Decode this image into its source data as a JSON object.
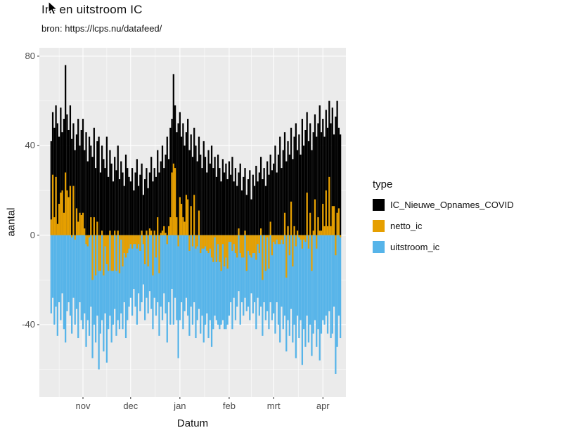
{
  "chart_data": {
    "type": "bar",
    "title": "In- en uitstroom IC",
    "subtitle": "bron: https://lcps.nu/datafeed/",
    "xlabel": "Datum",
    "ylabel": "aantal",
    "x_tick_labels": [
      "nov",
      "dec",
      "jan",
      "feb",
      "mrt",
      "apr"
    ],
    "x_tick_day_index": [
      20,
      50,
      81,
      112,
      140,
      171
    ],
    "y_ticks": [
      80,
      40,
      0,
      -40
    ],
    "ylim": [
      -72,
      84
    ],
    "grid": true,
    "panel_background": "#EBEBEB",
    "gridline_color": "#FFFFFF",
    "legend": {
      "title": "type",
      "position": "right",
      "entries": [
        {
          "label": "IC_Nieuwe_Opnames_COVID",
          "color": "#000000"
        },
        {
          "label": "netto_ic",
          "color": "#E69F00"
        },
        {
          "label": "uitstroom_ic",
          "color": "#56B4E9"
        }
      ]
    },
    "series": [
      {
        "name": "IC_Nieuwe_Opnames_COVID",
        "color": "#000000",
        "values": [
          42,
          55,
          48,
          58,
          50,
          44,
          57,
          46,
          52,
          76,
          54,
          47,
          58,
          43,
          50,
          38,
          45,
          52,
          40,
          47,
          52,
          38,
          46,
          33,
          44,
          40,
          35,
          48,
          30,
          42,
          44,
          28,
          40,
          34,
          30,
          44,
          26,
          38,
          32,
          24,
          35,
          29,
          40,
          25,
          33,
          28,
          22,
          36,
          30,
          26,
          24,
          30,
          20,
          28,
          34,
          22,
          27,
          32,
          18,
          25,
          30,
          21,
          28,
          35,
          24,
          30,
          26,
          38,
          28,
          33,
          40,
          30,
          36,
          44,
          34,
          48,
          52,
          72,
          58,
          46,
          50,
          55,
          44,
          50,
          40,
          46,
          52,
          38,
          45,
          35,
          48,
          40,
          33,
          44,
          36,
          30,
          42,
          35,
          28,
          38,
          32,
          40,
          30,
          35,
          26,
          36,
          30,
          24,
          34,
          28,
          32,
          25,
          33,
          27,
          35,
          24,
          30,
          22,
          28,
          32,
          20,
          26,
          30,
          18,
          25,
          29,
          16,
          27,
          22,
          31,
          24,
          28,
          35,
          25,
          30,
          22,
          33,
          27,
          36,
          29,
          32,
          40,
          28,
          36,
          44,
          30,
          38,
          46,
          33,
          42,
          36,
          48,
          34,
          44,
          50,
          38,
          45,
          36,
          52,
          40,
          47,
          55,
          42,
          50,
          38,
          46,
          54,
          44,
          50,
          58,
          46,
          52,
          44,
          56,
          48,
          60,
          50,
          57,
          45,
          53,
          60,
          48,
          45
        ]
      },
      {
        "name": "netto_ic",
        "color": "#E69F00",
        "values": [
          7,
          27,
          8,
          26,
          5,
          14,
          19,
          20,
          10,
          28,
          20,
          17,
          22,
          -1,
          22,
          -2,
          12,
          6,
          10,
          9,
          10,
          3,
          -4,
          -5,
          -1,
          8,
          -20,
          8,
          -18,
          6,
          -16,
          -16,
          2,
          -18,
          -5,
          -13,
          -16,
          2,
          -16,
          -16,
          2,
          -16,
          2,
          -17,
          -2,
          -14,
          -8,
          -10,
          -8,
          -6,
          -4,
          -6,
          -4,
          -4,
          -6,
          -4,
          -7,
          2,
          -4,
          -13,
          2,
          -14,
          3,
          2,
          -18,
          2,
          -10,
          8,
          -17,
          1,
          2,
          4,
          1,
          -4,
          4,
          8,
          28,
          32,
          30,
          8,
          -5,
          17,
          14,
          8,
          6,
          18,
          16,
          -7,
          13,
          -5,
          18,
          -6,
          -5,
          11,
          -8,
          -6,
          -6,
          -5,
          -7,
          -8,
          -6,
          -10,
          -12,
          -1,
          -12,
          -4,
          -12,
          -16,
          -4,
          -14,
          -10,
          -15,
          -3,
          -3,
          -7,
          -4,
          -8,
          -10,
          3,
          -8,
          -10,
          -10,
          2,
          -16,
          -7,
          -9,
          -10,
          -8,
          -8,
          -11,
          -4,
          -8,
          3,
          -20,
          0,
          -16,
          -1,
          -15,
          6,
          -9,
          -3,
          -4,
          -2,
          -4,
          -4,
          -2,
          -4,
          10,
          -19,
          4,
          -9,
          15,
          -14,
          4,
          -5,
          2,
          -1,
          -2,
          -6,
          -2,
          -3,
          19,
          -6,
          10,
          -16,
          2,
          16,
          -6,
          8,
          2,
          2,
          14,
          4,
          20,
          4,
          26,
          4,
          13,
          13,
          -9,
          10,
          12,
          -1
        ]
      },
      {
        "name": "uitstroom_ic",
        "color": "#56B4E9",
        "values": [
          -35,
          -28,
          -40,
          -32,
          -45,
          -30,
          -38,
          -26,
          -42,
          -48,
          -34,
          -30,
          -36,
          -44,
          -28,
          -40,
          -33,
          -46,
          -30,
          -38,
          -42,
          -35,
          -50,
          -38,
          -45,
          -32,
          -55,
          -40,
          -48,
          -36,
          -60,
          -44,
          -38,
          -52,
          -35,
          -57,
          -42,
          -36,
          -48,
          -40,
          -33,
          -45,
          -38,
          -42,
          -35,
          -42,
          -30,
          -46,
          -38,
          -32,
          -28,
          -36,
          -24,
          -32,
          -40,
          -26,
          -34,
          -30,
          -22,
          -38,
          -28,
          -35,
          -25,
          -33,
          -42,
          -28,
          -36,
          -30,
          -45,
          -32,
          -38,
          -26,
          -35,
          -48,
          -30,
          -40,
          -24,
          -40,
          -28,
          -38,
          -55,
          -38,
          -30,
          -42,
          -34,
          -28,
          -36,
          -45,
          -32,
          -40,
          -30,
          -46,
          -38,
          -33,
          -44,
          -36,
          -48,
          -40,
          -35,
          -46,
          -38,
          -50,
          -42,
          -36,
          -38,
          -40,
          -42,
          -40,
          -38,
          -42,
          -42,
          -40,
          -36,
          -30,
          -42,
          -28,
          -38,
          -32,
          -25,
          -40,
          -30,
          -36,
          -28,
          -34,
          -32,
          -38,
          -26,
          -35,
          -30,
          -42,
          -28,
          -36,
          -32,
          -45,
          -30,
          -38,
          -34,
          -42,
          -30,
          -38,
          -35,
          -44,
          -30,
          -40,
          -48,
          -32,
          -42,
          -36,
          -52,
          -38,
          -45,
          -33,
          -48,
          -40,
          -55,
          -36,
          -46,
          -38,
          -58,
          -42,
          -50,
          -36,
          -48,
          -40,
          -54,
          -44,
          -38,
          -50,
          -42,
          -56,
          -44,
          -38,
          -40,
          -36,
          -44,
          -34,
          -46,
          -44,
          -32,
          -62,
          -50,
          -36,
          -46
        ]
      }
    ]
  }
}
